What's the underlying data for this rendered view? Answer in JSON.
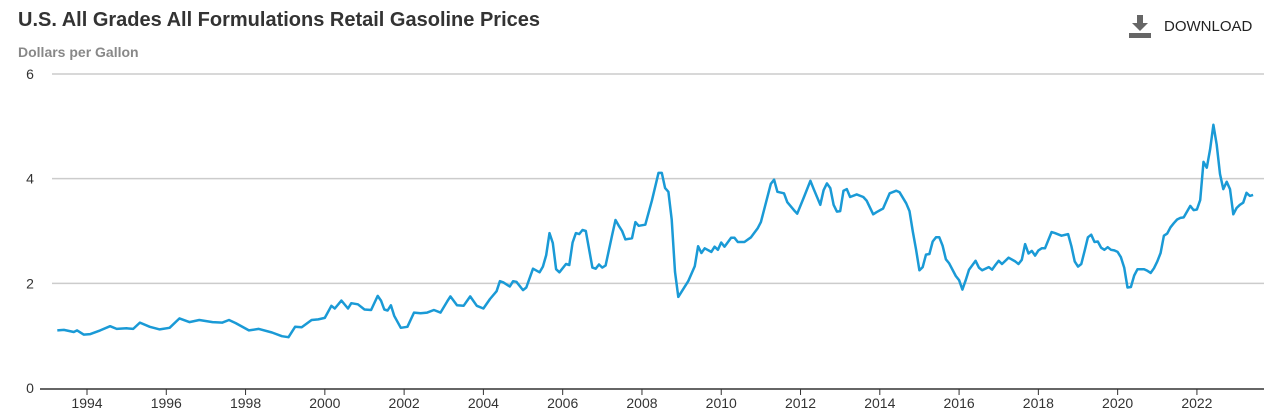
{
  "header": {
    "title": "U.S. All Grades All Formulations Retail Gasoline Prices",
    "subtitle": "Dollars per Gallon"
  },
  "toolbar": {
    "download_label": "DOWNLOAD",
    "download_icon": "download-icon"
  },
  "chart_data": {
    "type": "line",
    "title": "U.S. All Grades All Formulations Retail Gasoline Prices",
    "ylabel": "Dollars per Gallon",
    "xlabel": "",
    "ylim": [
      0,
      6
    ],
    "yticks": [
      0,
      2,
      4,
      6
    ],
    "xticks": [
      "1994",
      "1996",
      "1998",
      "2000",
      "2002",
      "2004",
      "2006",
      "2008",
      "2010",
      "2012",
      "2014",
      "2016",
      "2018",
      "2020",
      "2022"
    ],
    "grid": true,
    "line_color": "#1a9ad6",
    "series": [
      {
        "x": [
          "1993-04",
          "1993-06",
          "1993-09",
          "1993-10",
          "1993-12",
          "1994-02",
          "1994-05",
          "1994-08",
          "1994-10",
          "1995-01",
          "1995-03",
          "1995-05",
          "1995-08",
          "1995-11",
          "1996-02",
          "1996-05",
          "1996-08",
          "1996-11",
          "1997-03",
          "1997-06",
          "1997-08",
          "1997-10",
          "1998-02",
          "1998-05",
          "1998-09",
          "1998-12",
          "1999-02",
          "1999-04",
          "1999-06",
          "1999-09",
          "1999-11",
          "2000-01",
          "2000-03",
          "2000-04",
          "2000-06",
          "2000-08",
          "2000-09",
          "2000-11",
          "2001-01",
          "2001-03",
          "2001-05",
          "2001-06",
          "2001-07",
          "2001-08",
          "2001-09",
          "2001-10",
          "2001-12",
          "2002-02",
          "2002-04",
          "2002-06",
          "2002-08",
          "2002-10",
          "2002-12",
          "2003-02",
          "2003-03",
          "2003-05",
          "2003-07",
          "2003-09",
          "2003-11",
          "2004-01",
          "2004-03",
          "2004-05",
          "2004-06",
          "2004-07",
          "2004-09",
          "2004-10",
          "2004-11",
          "2005-01",
          "2005-02",
          "2005-04",
          "2005-06",
          "2005-07",
          "2005-08",
          "2005-09",
          "2005-10",
          "2005-11",
          "2005-12",
          "2006-02",
          "2006-03",
          "2006-04",
          "2006-05",
          "2006-06",
          "2006-07",
          "2006-08",
          "2006-10",
          "2006-11",
          "2006-12",
          "2007-01",
          "2007-02",
          "2007-04",
          "2007-05",
          "2007-06",
          "2007-07",
          "2007-08",
          "2007-10",
          "2007-11",
          "2007-12",
          "2008-02",
          "2008-04",
          "2008-06",
          "2008-07",
          "2008-08",
          "2008-09",
          "2008-10",
          "2008-11",
          "2008-12",
          "2009-01",
          "2009-03",
          "2009-05",
          "2009-06",
          "2009-07",
          "2009-08",
          "2009-10",
          "2009-11",
          "2009-12",
          "2010-01",
          "2010-02",
          "2010-04",
          "2010-05",
          "2010-06",
          "2010-08",
          "2010-10",
          "2010-12",
          "2011-01",
          "2011-04",
          "2011-05",
          "2011-06",
          "2011-08",
          "2011-09",
          "2011-11",
          "2011-12",
          "2012-02",
          "2012-04",
          "2012-05",
          "2012-07",
          "2012-08",
          "2012-09",
          "2012-10",
          "2012-11",
          "2012-12",
          "2013-01",
          "2013-02",
          "2013-03",
          "2013-04",
          "2013-06",
          "2013-08",
          "2013-09",
          "2013-11",
          "2013-12",
          "2014-02",
          "2014-04",
          "2014-06",
          "2014-07",
          "2014-09",
          "2014-10",
          "2014-11",
          "2014-12",
          "2015-01",
          "2015-02",
          "2015-03",
          "2015-04",
          "2015-05",
          "2015-06",
          "2015-07",
          "2015-08",
          "2015-09",
          "2015-10",
          "2015-12",
          "2016-01",
          "2016-02",
          "2016-03",
          "2016-04",
          "2016-06",
          "2016-07",
          "2016-08",
          "2016-10",
          "2016-11",
          "2016-12",
          "2017-01",
          "2017-02",
          "2017-04",
          "2017-06",
          "2017-07",
          "2017-08",
          "2017-09",
          "2017-10",
          "2017-11",
          "2017-12",
          "2018-01",
          "2018-02",
          "2018-03",
          "2018-05",
          "2018-06",
          "2018-08",
          "2018-10",
          "2018-11",
          "2018-12",
          "2019-01",
          "2019-02",
          "2019-03",
          "2019-04",
          "2019-05",
          "2019-06",
          "2019-07",
          "2019-08",
          "2019-09",
          "2019-10",
          "2019-11",
          "2019-12",
          "2020-01",
          "2020-02",
          "2020-03",
          "2020-04",
          "2020-05",
          "2020-06",
          "2020-07",
          "2020-08",
          "2020-09",
          "2020-10",
          "2020-11",
          "2020-12",
          "2021-01",
          "2021-02",
          "2021-03",
          "2021-04",
          "2021-05",
          "2021-06",
          "2021-07",
          "2021-08",
          "2021-09",
          "2021-10",
          "2021-11",
          "2021-12",
          "2022-01",
          "2022-02",
          "2022-03",
          "2022-04",
          "2022-05",
          "2022-06",
          "2022-07",
          "2022-08",
          "2022-09",
          "2022-10",
          "2022-11",
          "2022-12",
          "2023-01",
          "2023-02",
          "2023-03",
          "2023-04",
          "2023-05",
          "2023-06"
        ],
        "y": [
          1.1,
          1.11,
          1.07,
          1.1,
          1.02,
          1.03,
          1.1,
          1.18,
          1.13,
          1.14,
          1.13,
          1.25,
          1.17,
          1.12,
          1.15,
          1.33,
          1.26,
          1.3,
          1.26,
          1.25,
          1.3,
          1.24,
          1.1,
          1.13,
          1.06,
          0.99,
          0.97,
          1.17,
          1.16,
          1.3,
          1.31,
          1.34,
          1.57,
          1.52,
          1.67,
          1.52,
          1.62,
          1.6,
          1.5,
          1.49,
          1.76,
          1.67,
          1.5,
          1.48,
          1.58,
          1.38,
          1.15,
          1.17,
          1.44,
          1.43,
          1.44,
          1.49,
          1.44,
          1.65,
          1.75,
          1.58,
          1.57,
          1.75,
          1.57,
          1.52,
          1.7,
          1.85,
          2.04,
          2.02,
          1.94,
          2.04,
          2.03,
          1.87,
          1.92,
          2.28,
          2.21,
          2.32,
          2.54,
          2.96,
          2.77,
          2.27,
          2.21,
          2.37,
          2.35,
          2.78,
          2.96,
          2.94,
          3.02,
          3.0,
          2.3,
          2.28,
          2.36,
          2.3,
          2.34,
          2.93,
          3.21,
          3.1,
          3.0,
          2.84,
          2.86,
          3.17,
          3.1,
          3.12,
          3.58,
          4.11,
          4.11,
          3.82,
          3.75,
          3.22,
          2.22,
          1.74,
          1.84,
          2.04,
          2.33,
          2.71,
          2.58,
          2.67,
          2.6,
          2.7,
          2.64,
          2.78,
          2.7,
          2.87,
          2.87,
          2.79,
          2.79,
          2.88,
          3.05,
          3.17,
          3.9,
          3.98,
          3.75,
          3.72,
          3.55,
          3.4,
          3.33,
          3.64,
          3.96,
          3.8,
          3.5,
          3.78,
          3.91,
          3.82,
          3.5,
          3.37,
          3.38,
          3.77,
          3.8,
          3.65,
          3.7,
          3.65,
          3.58,
          3.32,
          3.36,
          3.43,
          3.72,
          3.77,
          3.74,
          3.53,
          3.38,
          2.99,
          2.64,
          2.25,
          2.31,
          2.55,
          2.56,
          2.8,
          2.88,
          2.88,
          2.72,
          2.46,
          2.38,
          2.14,
          2.06,
          1.88,
          2.06,
          2.26,
          2.43,
          2.3,
          2.25,
          2.31,
          2.26,
          2.35,
          2.43,
          2.37,
          2.49,
          2.42,
          2.37,
          2.45,
          2.75,
          2.57,
          2.62,
          2.53,
          2.63,
          2.67,
          2.67,
          2.98,
          2.96,
          2.91,
          2.94,
          2.71,
          2.42,
          2.32,
          2.37,
          2.62,
          2.88,
          2.93,
          2.79,
          2.8,
          2.68,
          2.64,
          2.69,
          2.64,
          2.63,
          2.6,
          2.5,
          2.3,
          1.92,
          1.93,
          2.15,
          2.27,
          2.27,
          2.27,
          2.24,
          2.2,
          2.29,
          2.42,
          2.58,
          2.91,
          2.95,
          3.07,
          3.15,
          3.22,
          3.25,
          3.26,
          3.37,
          3.48,
          3.4,
          3.41,
          3.59,
          4.32,
          4.21,
          4.56,
          5.03,
          4.65,
          4.09,
          3.8,
          3.94,
          3.8,
          3.32,
          3.44,
          3.5,
          3.54,
          3.73,
          3.67,
          3.69
        ]
      }
    ]
  }
}
